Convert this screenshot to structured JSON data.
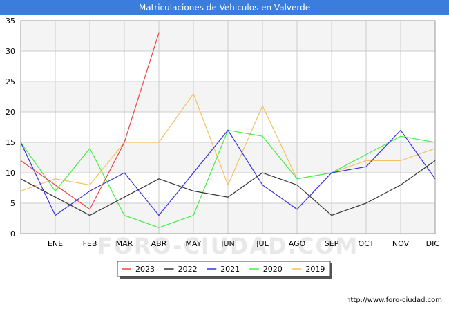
{
  "chart_data": {
    "type": "line",
    "title": "Matriculaciones de Vehiculos en Valverde",
    "categories": [
      "",
      "ENE",
      "FEB",
      "MAR",
      "ABR",
      "MAY",
      "JUN",
      "JUL",
      "AGO",
      "SEP",
      "OCT",
      "NOV",
      "DIC"
    ],
    "ylim": [
      0,
      35
    ],
    "yticks": [
      0,
      5,
      10,
      15,
      20,
      25,
      30,
      35
    ],
    "series": [
      {
        "name": "2023",
        "color": "#ee4444",
        "values": [
          12,
          8,
          4,
          15,
          33,
          null,
          null,
          null,
          null,
          null,
          null,
          null,
          null
        ]
      },
      {
        "name": "2022",
        "color": "#333333",
        "values": [
          9,
          6,
          3,
          6,
          9,
          7,
          6,
          10,
          8,
          3,
          5,
          8,
          12
        ]
      },
      {
        "name": "2021",
        "color": "#3333dd",
        "values": [
          15,
          3,
          7,
          10,
          3,
          10,
          17,
          8,
          4,
          10,
          11,
          17,
          9
        ]
      },
      {
        "name": "2020",
        "color": "#44ee44",
        "values": [
          15,
          7,
          14,
          3,
          1,
          3,
          17,
          16,
          9,
          10,
          13,
          16,
          15
        ]
      },
      {
        "name": "2019",
        "color": "#f5c060",
        "values": [
          7,
          9,
          8,
          15,
          15,
          23,
          8,
          21,
          9,
          10,
          12,
          12,
          14
        ]
      }
    ],
    "watermark": "FORO-CIUDAD.COM",
    "source": "http://www.foro-ciudad.com",
    "legend_position": "bottom-center",
    "grid": true
  }
}
